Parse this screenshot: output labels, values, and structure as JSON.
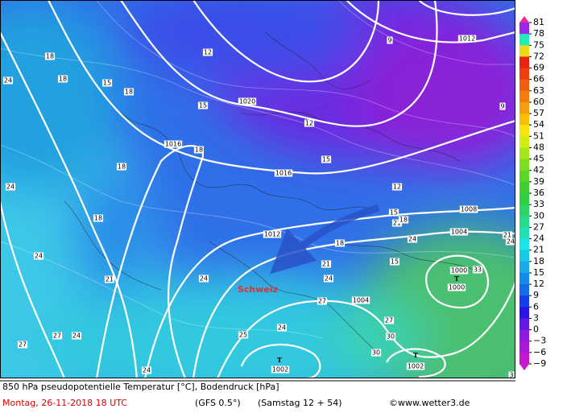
{
  "colorbar": {
    "labels": [
      "81",
      "78",
      "75",
      "72",
      "69",
      "66",
      "63",
      "60",
      "57",
      "54",
      "51",
      "48",
      "45",
      "42",
      "39",
      "36",
      "33",
      "30",
      "27",
      "24",
      "21",
      "18",
      "15",
      "12",
      "9",
      "6",
      "3",
      "0",
      "−3",
      "−6",
      "−9"
    ]
  },
  "map": {
    "region_label": "Schweiz",
    "pressure_labels": [
      "1012",
      "1020",
      "1016",
      "1016",
      "1012",
      "1008",
      "1004",
      "1000",
      "1000",
      "1004",
      "1002",
      "1002"
    ],
    "low_markers": [
      "T",
      "T",
      "T"
    ],
    "temperature_labels": [
      "12",
      "9",
      "9",
      "12",
      "15",
      "18",
      "15",
      "18",
      "18",
      "24",
      "18",
      "18",
      "15",
      "12",
      "15",
      "21",
      "18",
      "18",
      "24",
      "18",
      "24",
      "15",
      "21",
      "24",
      "33",
      "24",
      "24",
      "21",
      "24",
      "27",
      "24",
      "27",
      "27",
      "27",
      "30",
      "30",
      "25",
      "24",
      "3",
      "21",
      "24"
    ]
  },
  "footer": {
    "title": "850 hPa pseudopotentielle Temperatur [°C], Bodendruck [hPa]",
    "date": "Montag, 26-11-2018  18 UTC",
    "model": "(GFS 0.5°)",
    "forecast": "(Samstag 12 + 54)",
    "source": "©www.wetter3.de"
  }
}
